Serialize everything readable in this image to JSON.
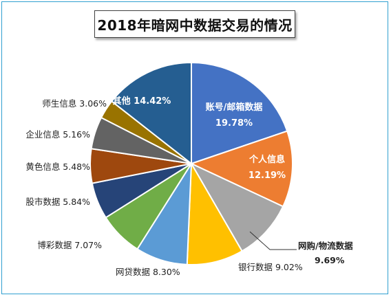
{
  "chart_data": {
    "type": "pie",
    "title": "2018年暗网中数据交易的情况",
    "slices": [
      {
        "label": "账号/邮箱数据",
        "value_text": "19.78%",
        "value": 19.78,
        "color": "#4472c4",
        "label_position": "inside"
      },
      {
        "label": "个人信息",
        "value_text": "12.19%",
        "value": 12.19,
        "color": "#ed7d31",
        "label_position": "inside"
      },
      {
        "label": "网购/物流数据",
        "value_text": "9.69%",
        "value": 9.69,
        "color": "#a5a5a5",
        "label_position": "outside"
      },
      {
        "label": "银行数据",
        "value_text": "9.02%",
        "value": 9.02,
        "color": "#ffc000",
        "label_position": "outside"
      },
      {
        "label": "网贷数据",
        "value_text": "8.30%",
        "value": 8.3,
        "color": "#5b9bd5",
        "label_position": "outside"
      },
      {
        "label": "博彩数据",
        "value_text": "7.07%",
        "value": 7.07,
        "color": "#70ad47",
        "label_position": "outside"
      },
      {
        "label": "股市数据",
        "value_text": "5.84%",
        "value": 5.84,
        "color": "#264478",
        "label_position": "outside"
      },
      {
        "label": "黄色信息",
        "value_text": "5.48%",
        "value": 5.48,
        "color": "#9e480e",
        "label_position": "outside"
      },
      {
        "label": "企业信息",
        "value_text": "5.16%",
        "value": 5.16,
        "color": "#636363",
        "label_position": "outside"
      },
      {
        "label": "师生信息",
        "value_text": "3.06%",
        "value": 3.06,
        "color": "#997300",
        "label_position": "outside"
      },
      {
        "label": "其他",
        "value_text": "14.42%",
        "value": 14.42,
        "color": "#255e91",
        "label_position": "inside"
      }
    ]
  }
}
